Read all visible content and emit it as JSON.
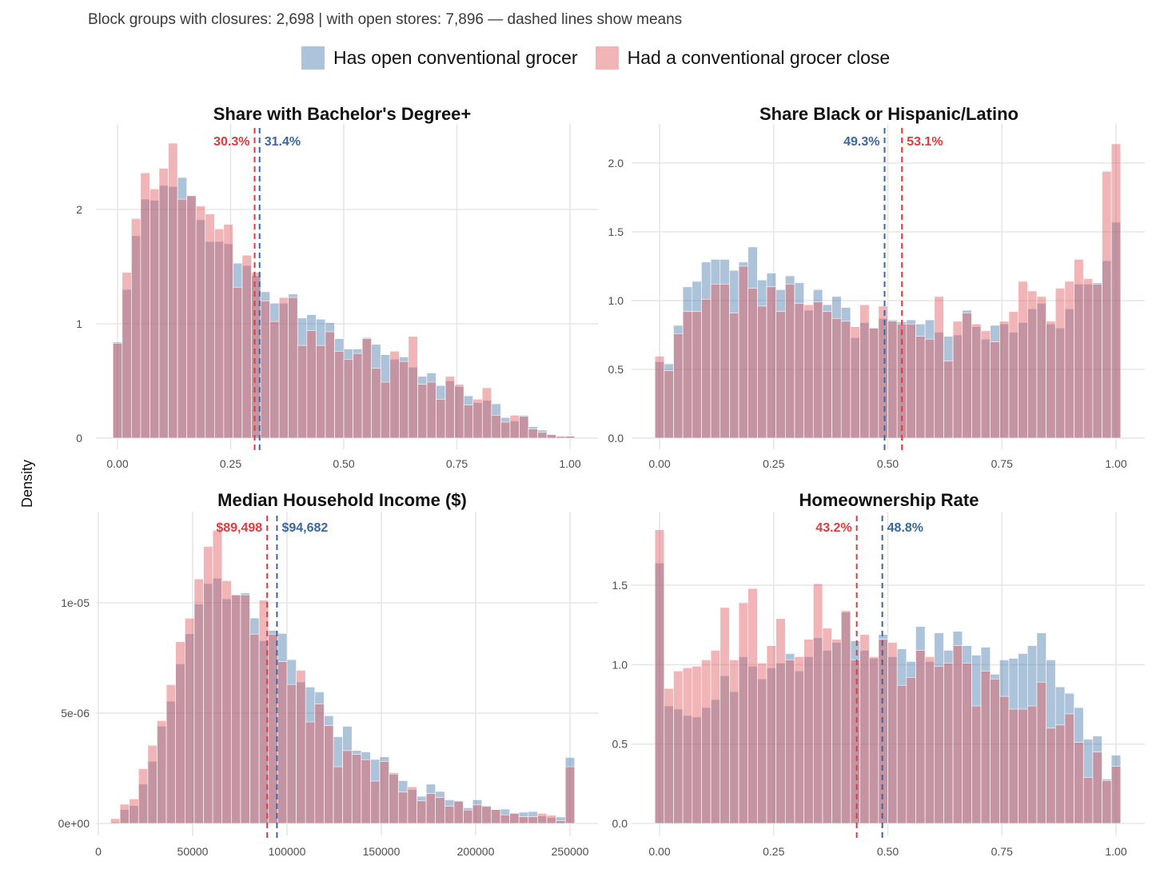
{
  "subtitle": "Block groups with closures: 2,698 | with open stores: 7,896 — dashed lines show means",
  "legend": [
    {
      "label": "Has open conventional grocer",
      "color": "#4a7bab"
    },
    {
      "label": "Had a conventional grocer close",
      "color": "#e05a5f"
    }
  ],
  "ylabel": "Density",
  "colors": {
    "open": "#4a7bab",
    "closed": "#e05a5f",
    "open_mean": "#3a679e",
    "closed_mean": "#e0393e"
  },
  "chart_data": [
    {
      "type": "histogram-overlay",
      "title": "Share with Bachelor's Degree+",
      "bins": {
        "first_center": 0,
        "last_center": 1,
        "count": 50
      },
      "xlim": [
        -0.03,
        1.03
      ],
      "ylim": [
        0,
        2.65
      ],
      "xticks": [
        0,
        0.25,
        0.5,
        0.75,
        1
      ],
      "xtick_labels": [
        "0.00",
        "0.25",
        "0.50",
        "0.75",
        "1.00"
      ],
      "yticks": [
        0,
        1,
        2
      ],
      "ytick_labels": [
        "0",
        "1",
        "2"
      ],
      "means": {
        "open": 0.314,
        "closed": 0.303,
        "open_label": "31.4%",
        "closed_label": "30.3%"
      },
      "series": [
        {
          "name": "Has open conventional grocer",
          "values": [
            0.84,
            1.3,
            1.77,
            2.09,
            2.08,
            2.21,
            2.2,
            2.28,
            2.12,
            1.91,
            1.72,
            1.72,
            1.7,
            1.53,
            1.51,
            1.42,
            1.28,
            1.18,
            1.18,
            1.26,
            1.05,
            1.08,
            1.04,
            1.01,
            0.87,
            0.78,
            0.78,
            0.88,
            0.82,
            0.73,
            0.69,
            0.71,
            0.62,
            0.54,
            0.57,
            0.46,
            0.5,
            0.45,
            0.37,
            0.31,
            0.33,
            0.3,
            0.18,
            0.15,
            0.2,
            0.1,
            0.07,
            0.03,
            0.015,
            0.016
          ]
        },
        {
          "name": "Had a conventional grocer close",
          "values": [
            0.83,
            1.45,
            1.92,
            2.32,
            2.18,
            2.36,
            2.58,
            2.09,
            2.12,
            2.03,
            1.96,
            1.83,
            1.87,
            1.32,
            1.6,
            1.45,
            1.2,
            1.02,
            1.23,
            1.23,
            0.81,
            0.94,
            0.81,
            0.93,
            0.76,
            0.69,
            0.74,
            0.87,
            0.61,
            0.49,
            0.76,
            0.67,
            0.89,
            0.47,
            0.49,
            0.34,
            0.54,
            0.47,
            0.29,
            0.34,
            0.44,
            0.2,
            0.14,
            0.2,
            0.19,
            0.08,
            0.05,
            0.03,
            0.015,
            0.016
          ]
        }
      ]
    },
    {
      "type": "histogram-overlay",
      "title": "Share Black or Hispanic/Latino",
      "bins": {
        "first_center": 0,
        "last_center": 1,
        "count": 50
      },
      "xlim": [
        -0.06,
        1.06
      ],
      "ylim": [
        0,
        2.25
      ],
      "xticks": [
        0,
        0.25,
        0.5,
        0.75,
        1
      ],
      "xtick_labels": [
        "0.00",
        "0.25",
        "0.50",
        "0.75",
        "1.00"
      ],
      "yticks": [
        0,
        0.5,
        1,
        1.5,
        2
      ],
      "ytick_labels": [
        "0.0",
        "0.5",
        "1.0",
        "1.5",
        "2.0"
      ],
      "means": {
        "open": 0.493,
        "closed": 0.531,
        "open_label": "49.3%",
        "closed_label": "53.1%"
      },
      "series": [
        {
          "name": "Has open conventional grocer",
          "values": [
            0.556,
            0.54,
            0.82,
            1.1,
            1.14,
            1.28,
            1.3,
            1.3,
            1.22,
            1.28,
            1.39,
            1.15,
            1.2,
            1.08,
            1.18,
            1.13,
            0.93,
            1.08,
            0.97,
            1.03,
            0.95,
            0.73,
            0.84,
            0.8,
            0.87,
            0.86,
            0.845,
            0.86,
            0.83,
            0.86,
            0.77,
            0.74,
            0.75,
            0.93,
            0.81,
            0.72,
            0.82,
            0.83,
            0.77,
            0.84,
            0.94,
            0.98,
            0.83,
            0.8,
            0.94,
            1.12,
            1.12,
            1.13,
            1.29,
            1.57
          ]
        },
        {
          "name": "Had a conventional grocer close",
          "values": [
            0.595,
            0.49,
            0.76,
            0.92,
            0.92,
            1.01,
            1.12,
            1.12,
            0.91,
            1.25,
            1.09,
            0.96,
            1.1,
            0.92,
            1.12,
            0.98,
            0.97,
            0.99,
            0.92,
            0.87,
            0.85,
            0.81,
            0.97,
            0.8,
            0.96,
            0.85,
            0.83,
            0.83,
            0.74,
            0.72,
            1.03,
            0.56,
            0.85,
            0.91,
            0.83,
            0.78,
            0.7,
            0.85,
            0.92,
            1.14,
            1.07,
            1.03,
            0.85,
            1.09,
            1.14,
            1.3,
            1.16,
            1.12,
            1.94,
            2.14
          ]
        }
      ]
    },
    {
      "type": "histogram-overlay",
      "title": "Median Household Income ($)",
      "bins": {
        "first_center": 9000,
        "last_center": 250000,
        "count": 50
      },
      "xlim": [
        -1000,
        262000
      ],
      "ylim": [
        0,
        1.38e-05
      ],
      "xticks": [
        0,
        50000,
        100000,
        150000,
        200000,
        250000
      ],
      "xtick_labels": [
        "0",
        "50000",
        "100000",
        "150000",
        "200000",
        "250000"
      ],
      "yticks": [
        0,
        5e-06,
        1e-05
      ],
      "ytick_labels": [
        "0e+00",
        "5e-06",
        "1e-05"
      ],
      "value_unit": 1e-06,
      "means": {
        "open": 94682,
        "closed": 89498,
        "open_label": "$94,682",
        "closed_label": "$89,498"
      },
      "series": [
        {
          "name": "Has open conventional grocer",
          "values": [
            0.06,
            0.63,
            0.81,
            1.78,
            2.81,
            4.41,
            5.54,
            7.23,
            8.6,
            9.94,
            10.87,
            11.11,
            10.18,
            10.35,
            10.45,
            9.31,
            8.28,
            8.75,
            8.61,
            7.42,
            6.41,
            6.18,
            5.96,
            4.88,
            3.93,
            4.4,
            3.31,
            3.24,
            2.9,
            3.02,
            2.3,
            1.94,
            1.53,
            1.23,
            1.78,
            1.45,
            1.07,
            1.01,
            0.71,
            1.07,
            0.81,
            0.63,
            0.65,
            0.46,
            0.51,
            0.54,
            0.34,
            0.27,
            0.29,
            2.99
          ]
        },
        {
          "name": "Had a conventional grocer close",
          "values": [
            0.22,
            0.87,
            1.11,
            2.48,
            3.54,
            4.66,
            6.29,
            8.24,
            9.3,
            11.08,
            12.55,
            13.28,
            11.0,
            10.36,
            10.36,
            8.58,
            10.12,
            8.58,
            7.33,
            6.3,
            6.94,
            4.6,
            5.42,
            4.43,
            2.57,
            3.3,
            3.13,
            2.89,
            1.92,
            2.81,
            2.24,
            1.42,
            1.66,
            1.02,
            1.35,
            1.17,
            0.78,
            1.01,
            0.61,
            0.84,
            0.77,
            0.63,
            0.39,
            0.46,
            0.3,
            0.3,
            0.46,
            0.37,
            0.12,
            2.57
          ]
        }
      ]
    },
    {
      "type": "histogram-overlay",
      "title": "Homeownership Rate",
      "bins": {
        "first_center": 0,
        "last_center": 1,
        "count": 50
      },
      "xlim": [
        -0.06,
        1.06
      ],
      "ylim": [
        0,
        1.95
      ],
      "xticks": [
        0,
        0.25,
        0.5,
        0.75,
        1
      ],
      "xtick_labels": [
        "0.00",
        "0.25",
        "0.50",
        "0.75",
        "1.00"
      ],
      "yticks": [
        0,
        0.5,
        1,
        1.5
      ],
      "ytick_labels": [
        "0.0",
        "0.5",
        "1.0",
        "1.5"
      ],
      "means": {
        "open": 0.488,
        "closed": 0.432,
        "open_label": "48.8%",
        "closed_label": "43.2%"
      },
      "series": [
        {
          "name": "Has open conventional grocer",
          "values": [
            1.64,
            0.74,
            0.72,
            0.68,
            0.67,
            0.73,
            0.78,
            0.93,
            0.83,
            1.05,
            0.99,
            0.91,
            0.98,
            1.01,
            1.07,
            0.96,
            1.05,
            1.17,
            1.09,
            1.14,
            1.33,
            1.15,
            1.09,
            1.04,
            1.19,
            1.05,
            1.1,
            1.02,
            1.24,
            1.02,
            1.2,
            1.09,
            1.21,
            1.12,
            1.06,
            1.11,
            0.94,
            1.03,
            1.04,
            1.07,
            1.12,
            1.2,
            1.03,
            0.86,
            0.82,
            0.73,
            0.53,
            0.55,
            0.28,
            0.43
          ]
        },
        {
          "name": "Had a conventional grocer close",
          "values": [
            1.85,
            0.85,
            0.96,
            0.98,
            0.99,
            1.03,
            1.09,
            1.36,
            1.03,
            1.39,
            1.48,
            1.01,
            1.12,
            1.29,
            1.03,
            1.05,
            1.16,
            1.51,
            1.23,
            1.16,
            1.34,
            1.03,
            1.19,
            1.05,
            1.16,
            1.14,
            0.87,
            0.92,
            1.09,
            1.05,
            0.99,
            1.01,
            1.12,
            1.01,
            0.74,
            0.96,
            0.91,
            0.8,
            0.72,
            0.72,
            0.74,
            0.89,
            0.6,
            0.62,
            0.69,
            0.51,
            0.29,
            0.45,
            0.27,
            0.36
          ]
        }
      ]
    }
  ]
}
